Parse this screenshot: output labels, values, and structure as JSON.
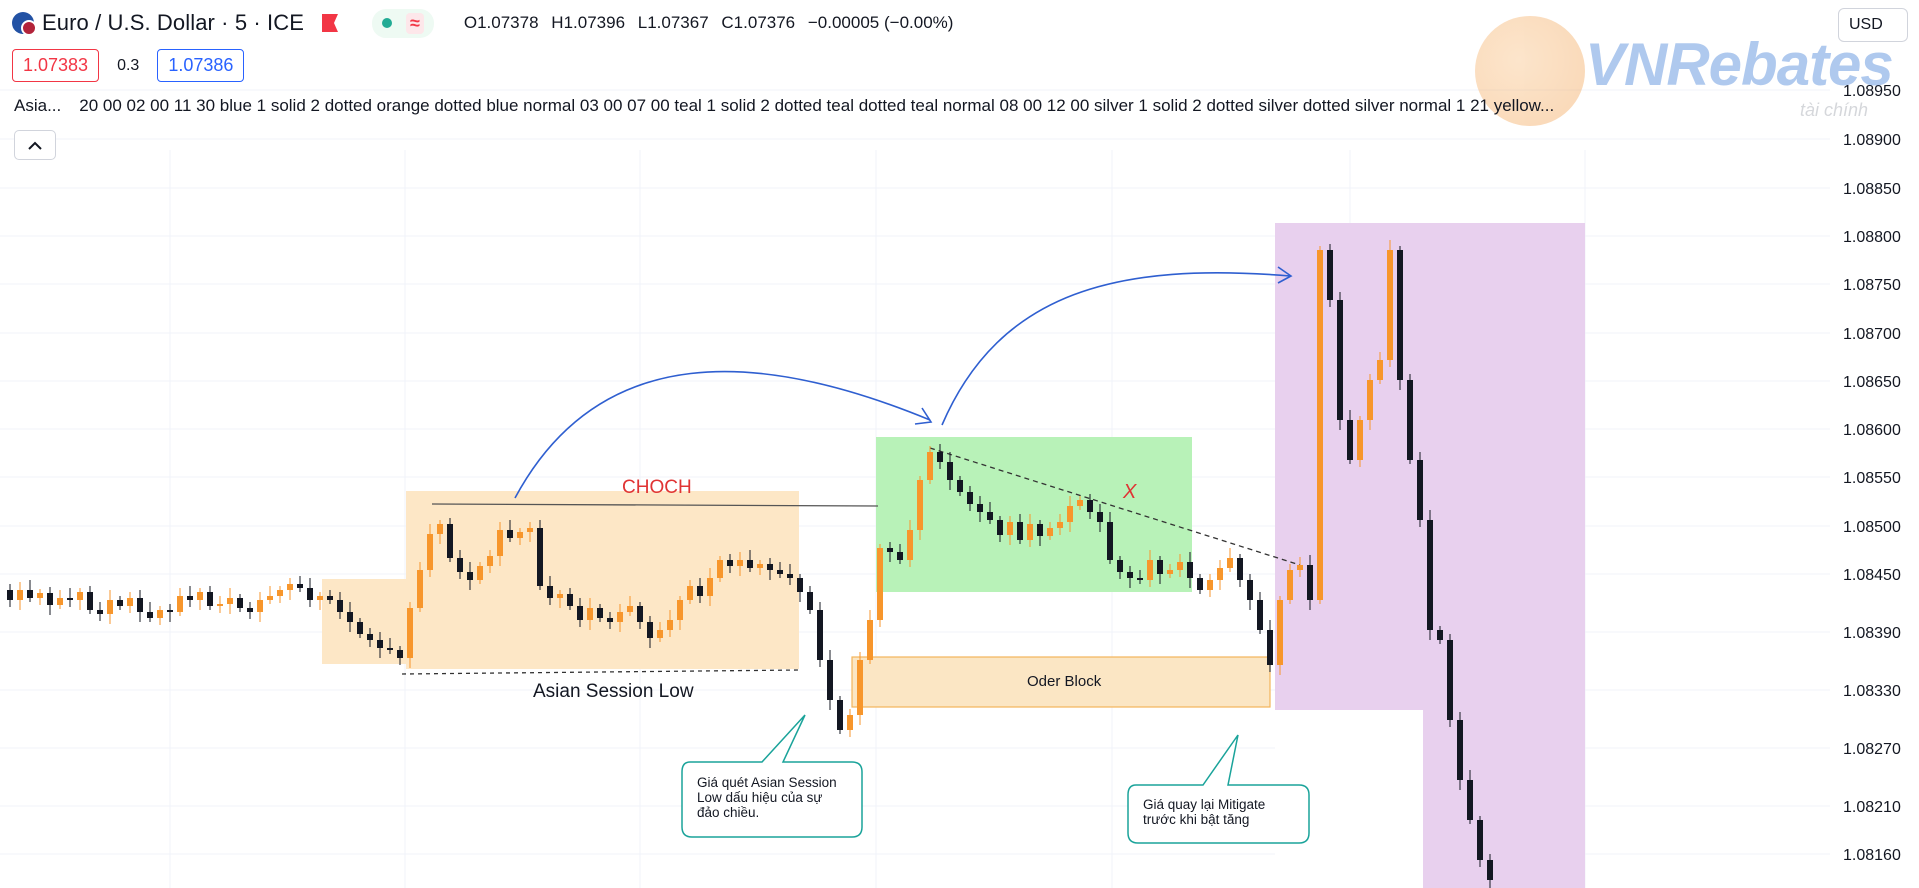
{
  "header": {
    "symbol_title": "Euro / U.S. Dollar · 5 · ICE",
    "ohlc": {
      "open": "O1.07378",
      "high": "H1.07396",
      "low": "L1.07367",
      "close": "C1.07376",
      "change": "−0.00005 (−0.00%)"
    },
    "status_wave": "≈",
    "bid": "1.07383",
    "spread": "0.3",
    "ask": "1.07386",
    "currency": "USD"
  },
  "indicator": {
    "name": "Asia...",
    "params": "20 00 02 00 11 30 blue 1 solid 2 dotted orange dotted blue normal 03 00 07 00 teal 1 solid 2 dotted teal dotted teal normal 08 00 12 00 silver 1 solid 2 dotted silver dotted silver normal 1 21 yellow..."
  },
  "watermark": {
    "brand": "VNRebates",
    "sub": "tài chính"
  },
  "price_axis": {
    "labels": [
      "1.08950",
      "1.08900",
      "1.08850",
      "1.08800",
      "1.08750",
      "1.08700",
      "1.08650",
      "1.08600",
      "1.08550",
      "1.08500",
      "1.08450",
      "1.08390",
      "1.08330",
      "1.08270",
      "1.08210",
      "1.08160"
    ]
  },
  "annotations": {
    "choch": "CHOCH",
    "asian_low": "Asian Session Low",
    "order_block": "Oder Block",
    "x_mark": "X",
    "callout_1": [
      "Giá quét Asian Session",
      "Low dấu hiệu của sự",
      "đảo chiều."
    ],
    "callout_2": [
      "Giá quay lại Mitigate",
      "trước khi bật tăng"
    ]
  },
  "colors": {
    "asian_zone": "#fde7c6",
    "green_zone": "#b8f2b8",
    "purple_zone": "#e8d0ee",
    "order_block": "#fbe6c4",
    "order_block_border": "#f4b35a",
    "bull_candle": "#f7962c",
    "bear_candle": "#131722",
    "arrow": "#2f5fd0",
    "callout_border": "#1aa39a"
  }
}
